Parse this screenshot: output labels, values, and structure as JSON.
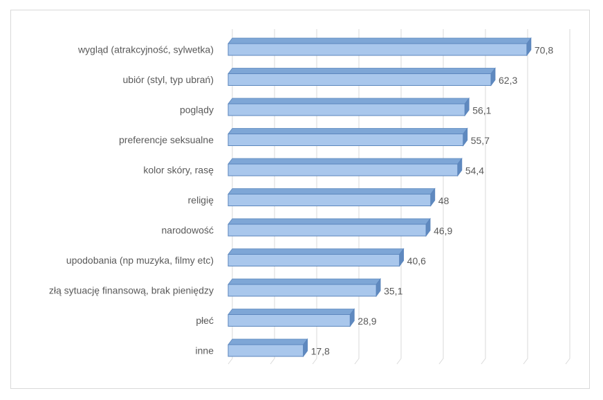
{
  "chart_data": {
    "type": "bar",
    "orientation": "horizontal",
    "title": "",
    "xlabel": "",
    "ylabel": "",
    "categories": [
      "wygląd (atrakcyjność, sylwetka)",
      "ubiór (styl, typ ubrań)",
      "poglądy",
      "preferencje seksualne",
      "kolor skóry, rasę",
      "religię",
      "narodowość",
      "upodobania (np muzyka, filmy etc)",
      "złą sytuację finansową, brak pieniędzy",
      "płeć",
      "inne"
    ],
    "values": [
      70.8,
      62.3,
      56.1,
      55.7,
      54.4,
      48,
      46.9,
      40.6,
      35.1,
      28.9,
      17.8
    ],
    "value_labels": [
      "70,8",
      "62,3",
      "56,1",
      "55,7",
      "54,4",
      "48",
      "46,9",
      "40,6",
      "35,1",
      "28,9",
      "17,8"
    ],
    "xlim": [
      0,
      80
    ],
    "grid": true,
    "legend": "none",
    "style": "3d-bar",
    "colors": {
      "bar_front": "#a9c7ec",
      "bar_top": "#7ea6d6",
      "bar_side": "#5f89bf",
      "bar_outline": "#5b86bd",
      "grid": "#d9d9d9",
      "text": "#595959"
    }
  }
}
